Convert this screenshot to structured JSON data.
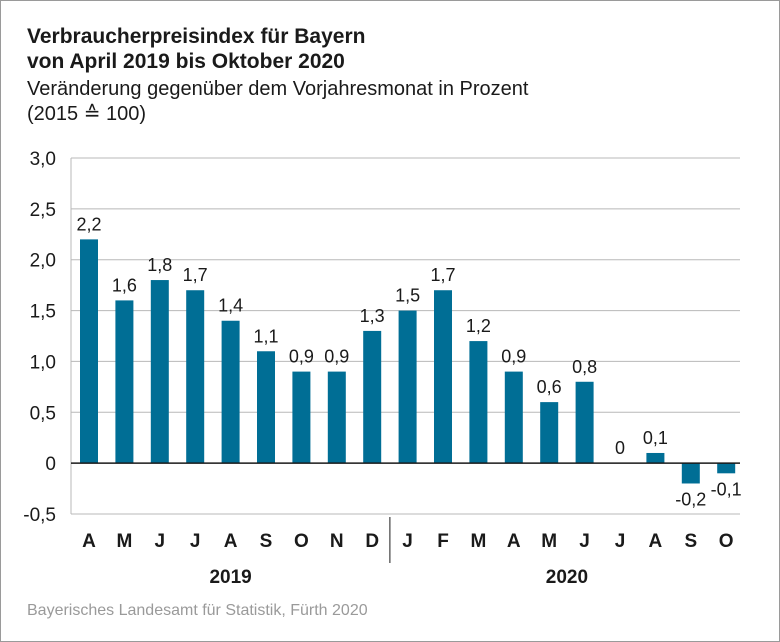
{
  "header": {
    "title_line1": "Verbraucherpreisindex für Bayern",
    "title_line2": "von April 2019 bis Oktober 2020",
    "subtitle_line1": "Veränderung gegenüber dem Vorjahresmonat in Prozent",
    "subtitle_line2": "(2015 ≙ 100)"
  },
  "chart_data": {
    "type": "bar",
    "categories": [
      "A",
      "M",
      "J",
      "J",
      "A",
      "S",
      "O",
      "N",
      "D",
      "J",
      "F",
      "M",
      "A",
      "M",
      "J",
      "J",
      "A",
      "S",
      "O"
    ],
    "year_groups": [
      {
        "label": "2019",
        "count": 9
      },
      {
        "label": "2020",
        "count": 10
      }
    ],
    "values": [
      2.2,
      1.6,
      1.8,
      1.7,
      1.4,
      1.1,
      0.9,
      0.9,
      1.3,
      1.5,
      1.7,
      1.2,
      0.9,
      0.6,
      0.8,
      0,
      0.1,
      -0.2,
      -0.1
    ],
    "value_labels": [
      "2,2",
      "1,6",
      "1,8",
      "1,7",
      "1,4",
      "1,1",
      "0,9",
      "0,9",
      "1,3",
      "1,5",
      "1,7",
      "1,2",
      "0,9",
      "0,6",
      "0,8",
      "0",
      "0,1",
      "-0,2",
      "-0,1"
    ],
    "yticks": [
      3.0,
      2.5,
      2.0,
      1.5,
      1.0,
      0.5,
      0,
      -0.5
    ],
    "ytick_labels": [
      "3,0",
      "2,5",
      "2,0",
      "1,5",
      "1,0",
      "0,5",
      "0",
      "-0,5"
    ],
    "ylim": [
      -0.5,
      3.0
    ],
    "grid": true,
    "bar_color": "#006e95",
    "title": "Verbraucherpreisindex für Bayern von April 2019 bis Oktober 2020",
    "xlabel": "",
    "ylabel": ""
  },
  "footer": {
    "source": "Bayerisches Landesamt für Statistik, Fürth 2020"
  }
}
